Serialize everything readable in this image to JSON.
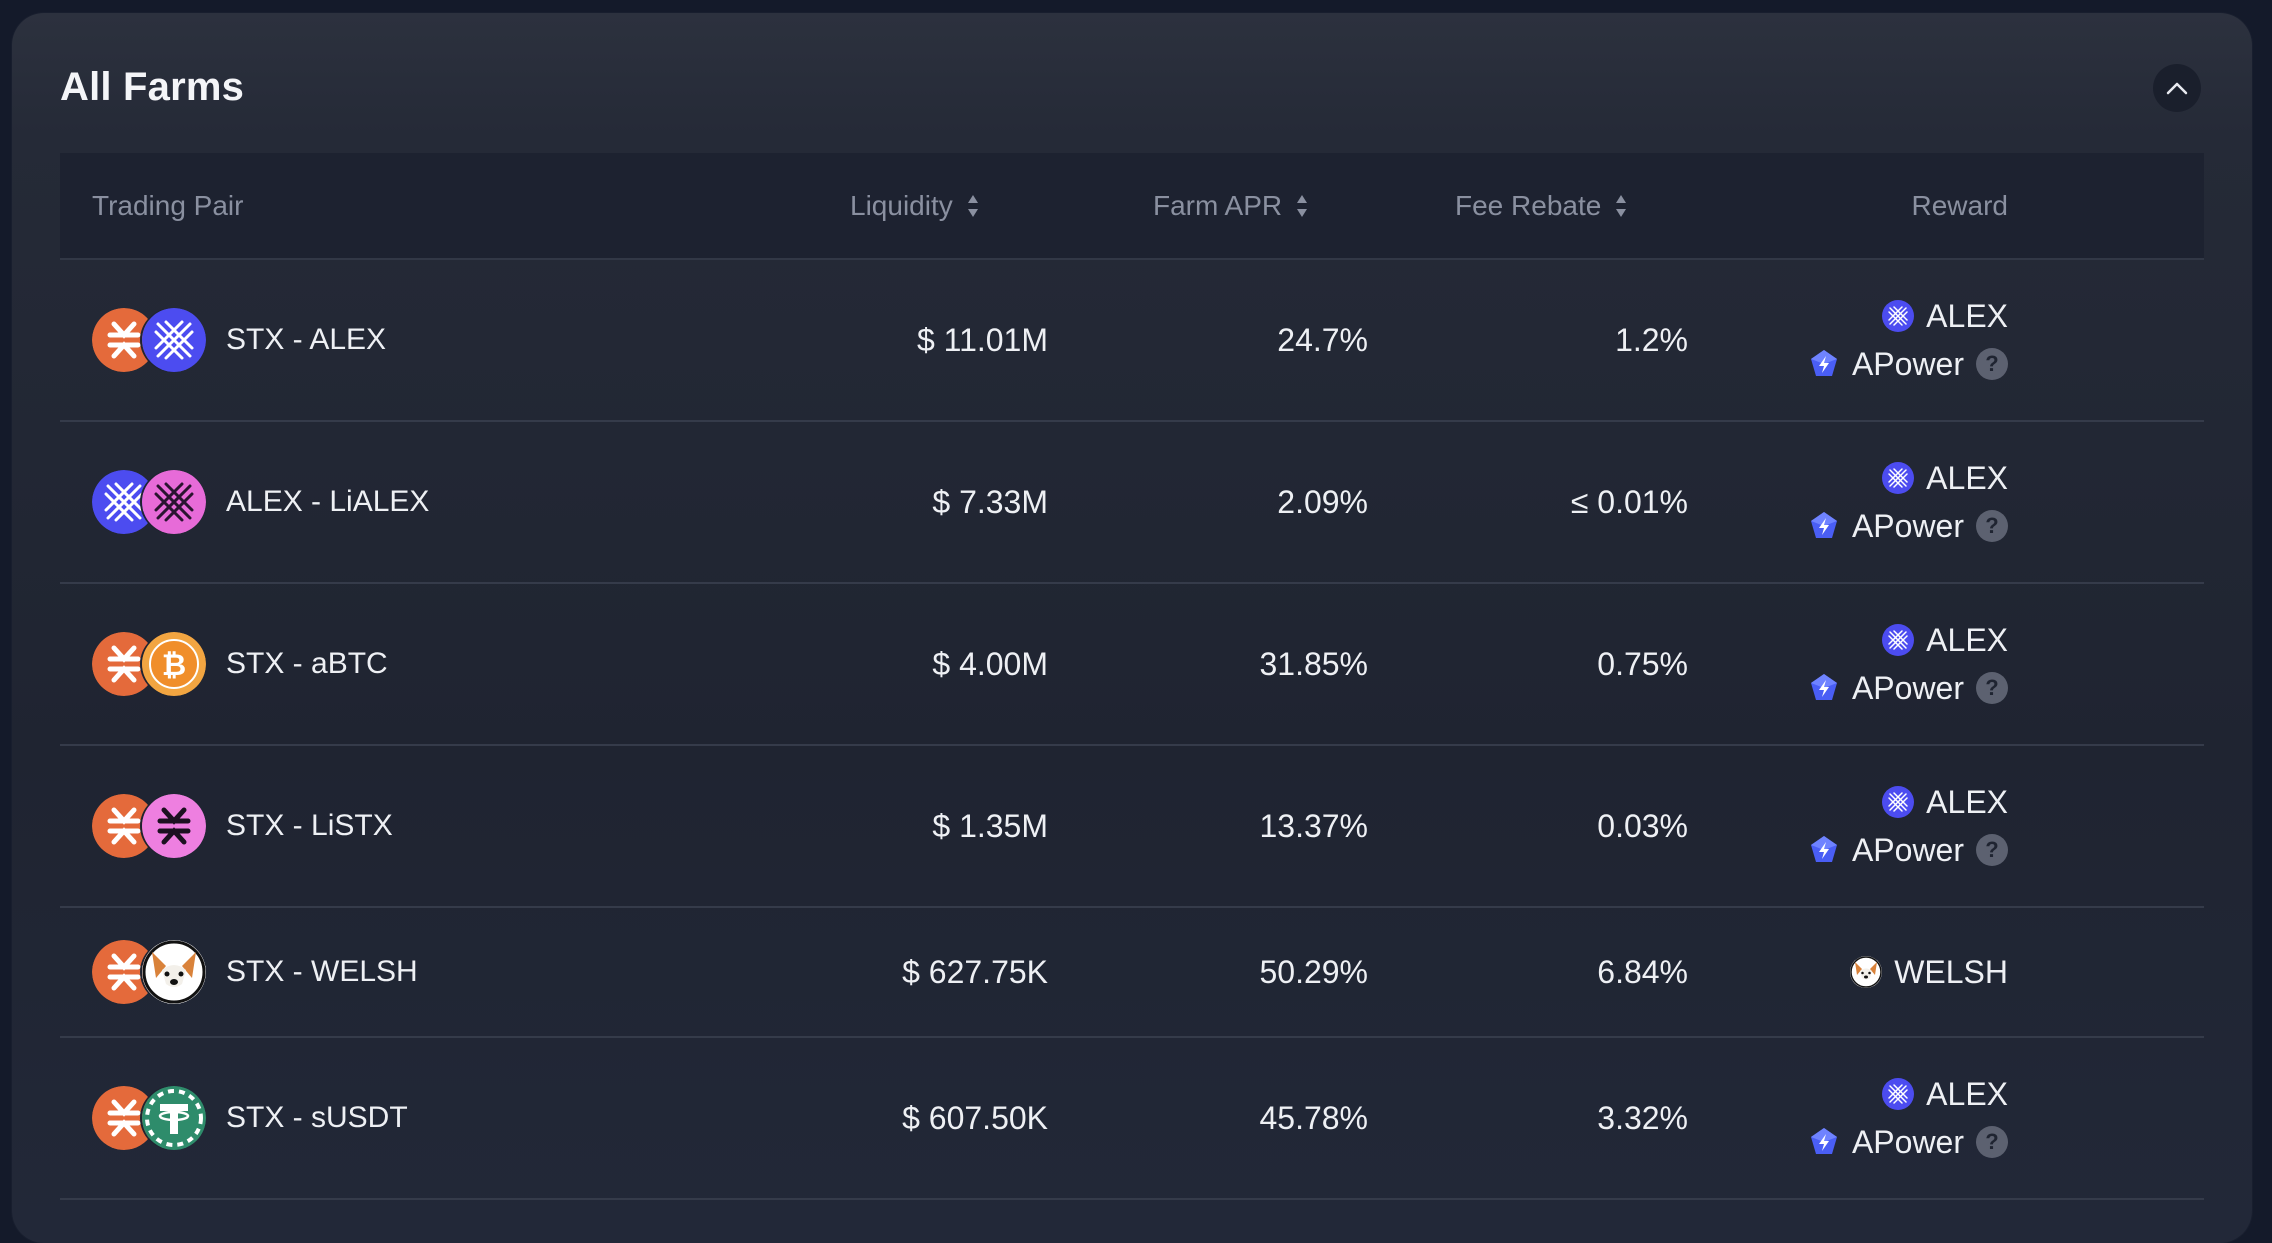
{
  "panel": {
    "title": "All Farms",
    "collapse_icon": "chevron-up-icon"
  },
  "columns": {
    "pair": "Trading Pair",
    "liquidity": "Liquidity",
    "apr": "Farm APR",
    "fee": "Fee Rebate",
    "reward": "Reward"
  },
  "colors": {
    "stx_orange": "#e46a3b",
    "alex_blue": "#4c4cf0",
    "pink": "#e76bd8",
    "btc_orange": "#f2a541",
    "usdt_green": "#2e8c6b"
  },
  "rows": [
    {
      "pair": "STX - ALEX",
      "token_a": "stx-icon",
      "token_b": "alex-icon",
      "liquidity": "$ 11.01M",
      "apr": "24.7%",
      "fee": "1.2%",
      "rewards": [
        {
          "name": "ALEX",
          "icon": "alex-icon"
        },
        {
          "name": "APower",
          "icon": "apower-icon",
          "help": "?"
        }
      ]
    },
    {
      "pair": "ALEX - LiALEX",
      "token_a": "alex-icon",
      "token_b": "lialex-icon",
      "liquidity": "$ 7.33M",
      "apr": "2.09%",
      "fee": "≤ 0.01%",
      "rewards": [
        {
          "name": "ALEX",
          "icon": "alex-icon"
        },
        {
          "name": "APower",
          "icon": "apower-icon",
          "help": "?"
        }
      ]
    },
    {
      "pair": "STX - aBTC",
      "token_a": "stx-icon",
      "token_b": "abtc-icon",
      "liquidity": "$ 4.00M",
      "apr": "31.85%",
      "fee": "0.75%",
      "rewards": [
        {
          "name": "ALEX",
          "icon": "alex-icon"
        },
        {
          "name": "APower",
          "icon": "apower-icon",
          "help": "?"
        }
      ]
    },
    {
      "pair": "STX - LiSTX",
      "token_a": "stx-icon",
      "token_b": "listx-icon",
      "liquidity": "$ 1.35M",
      "apr": "13.37%",
      "fee": "0.03%",
      "rewards": [
        {
          "name": "ALEX",
          "icon": "alex-icon"
        },
        {
          "name": "APower",
          "icon": "apower-icon",
          "help": "?"
        }
      ]
    },
    {
      "pair": "STX - WELSH",
      "token_a": "stx-icon",
      "token_b": "welsh-icon",
      "liquidity": "$ 627.75K",
      "apr": "50.29%",
      "fee": "6.84%",
      "rewards": [
        {
          "name": "WELSH",
          "icon": "welsh-icon"
        }
      ]
    },
    {
      "pair": "STX - sUSDT",
      "token_a": "stx-icon",
      "token_b": "susdt-icon",
      "liquidity": "$ 607.50K",
      "apr": "45.78%",
      "fee": "3.32%",
      "rewards": [
        {
          "name": "ALEX",
          "icon": "alex-icon"
        },
        {
          "name": "APower",
          "icon": "apower-icon",
          "help": "?"
        }
      ]
    }
  ]
}
